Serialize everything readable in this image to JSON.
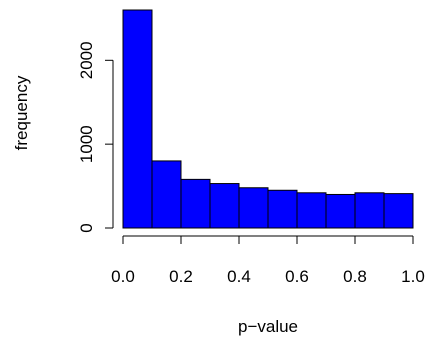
{
  "chart_data": {
    "type": "bar",
    "title": "",
    "xlabel": "p−value",
    "ylabel": "frequency",
    "bins": [
      {
        "start": 0.0,
        "end": 0.1,
        "count": 2600
      },
      {
        "start": 0.1,
        "end": 0.2,
        "count": 800
      },
      {
        "start": 0.2,
        "end": 0.3,
        "count": 580
      },
      {
        "start": 0.3,
        "end": 0.4,
        "count": 530
      },
      {
        "start": 0.4,
        "end": 0.5,
        "count": 480
      },
      {
        "start": 0.5,
        "end": 0.6,
        "count": 450
      },
      {
        "start": 0.6,
        "end": 0.7,
        "count": 420
      },
      {
        "start": 0.7,
        "end": 0.8,
        "count": 400
      },
      {
        "start": 0.8,
        "end": 0.9,
        "count": 420
      },
      {
        "start": 0.9,
        "end": 1.0,
        "count": 410
      }
    ],
    "xlim": [
      0,
      1
    ],
    "ylim": [
      0,
      2600
    ],
    "x_ticks": [
      0.0,
      0.2,
      0.4,
      0.6,
      0.8,
      1.0
    ],
    "x_tick_labels": [
      "0.0",
      "0.2",
      "0.4",
      "0.6",
      "0.8",
      "1.0"
    ],
    "y_ticks": [
      0,
      1000,
      2000
    ],
    "y_tick_labels": [
      "0",
      "1000",
      "2000"
    ],
    "bar_color": "#0000ff",
    "bar_edge_color": "#000000",
    "grid": false,
    "legend": "none"
  }
}
